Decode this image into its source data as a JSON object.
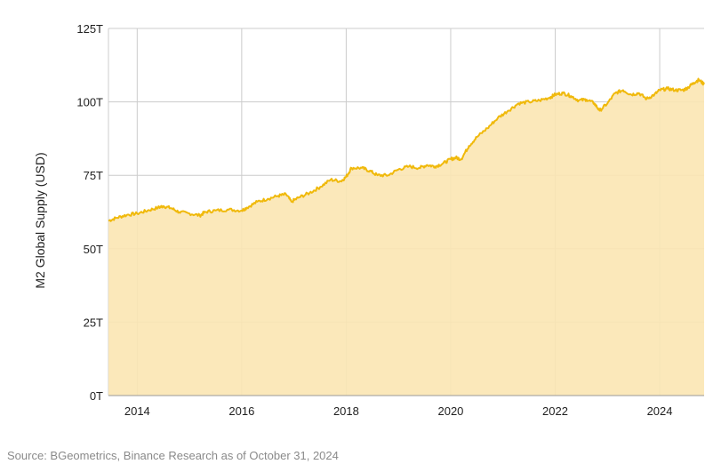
{
  "chart_data": {
    "type": "area",
    "title": "",
    "ylabel": "M2 Global Supply (USD)",
    "xlabel": "",
    "x_range": [
      2013.45,
      2024.85
    ],
    "ylim": [
      0,
      125
    ],
    "x_ticks": [
      {
        "value": 2014,
        "label": "2014"
      },
      {
        "value": 2016,
        "label": "2016"
      },
      {
        "value": 2018,
        "label": "2018"
      },
      {
        "value": 2020,
        "label": "2020"
      },
      {
        "value": 2022,
        "label": "2022"
      },
      {
        "value": 2024,
        "label": "2024"
      }
    ],
    "y_ticks": [
      {
        "value": 0,
        "label": "0T"
      },
      {
        "value": 25,
        "label": "25T"
      },
      {
        "value": 50,
        "label": "50T"
      },
      {
        "value": 75,
        "label": "75T"
      },
      {
        "value": 100,
        "label": "100T"
      },
      {
        "value": 125,
        "label": "125T"
      }
    ],
    "grid": true,
    "legend": "none",
    "colors": {
      "line": "#F0B90B",
      "fill": "#FBE6B3",
      "grid": "#CCCCCC"
    },
    "series": [
      {
        "name": "",
        "x": [
          2013.45,
          2013.6,
          2013.8,
          2014.0,
          2014.2,
          2014.4,
          2014.5,
          2014.65,
          2014.8,
          2015.0,
          2015.2,
          2015.3,
          2015.5,
          2015.75,
          2016.0,
          2016.1,
          2016.3,
          2016.5,
          2016.7,
          2016.85,
          2016.95,
          2017.1,
          2017.3,
          2017.5,
          2017.7,
          2017.9,
          2018.0,
          2018.1,
          2018.3,
          2018.45,
          2018.6,
          2018.8,
          2019.0,
          2019.2,
          2019.4,
          2019.55,
          2019.7,
          2019.85,
          2020.0,
          2020.1,
          2020.2,
          2020.35,
          2020.5,
          2020.7,
          2020.9,
          2021.1,
          2021.3,
          2021.5,
          2021.7,
          2021.9,
          2022.0,
          2022.15,
          2022.3,
          2022.45,
          2022.6,
          2022.75,
          2022.85,
          2023.0,
          2023.15,
          2023.3,
          2023.45,
          2023.6,
          2023.75,
          2023.9,
          2024.0,
          2024.15,
          2024.3,
          2024.45,
          2024.55,
          2024.65,
          2024.75,
          2024.85
        ],
        "values": [
          59.5,
          60.5,
          61.5,
          62.0,
          63.0,
          64.0,
          64.5,
          63.8,
          62.5,
          62.0,
          61.3,
          62.5,
          63.0,
          63.3,
          63.0,
          64.0,
          66.0,
          67.0,
          68.0,
          68.5,
          66.0,
          67.5,
          69.0,
          71.0,
          73.5,
          73.0,
          74.5,
          77.5,
          77.5,
          76.5,
          75.0,
          75.0,
          77.0,
          78.0,
          77.5,
          78.5,
          78.0,
          79.0,
          80.5,
          81.0,
          80.5,
          85.0,
          88.0,
          91.0,
          94.5,
          97.0,
          99.5,
          100.0,
          100.5,
          101.5,
          102.5,
          103.0,
          102.0,
          100.5,
          100.8,
          99.5,
          97.0,
          99.5,
          103.0,
          104.0,
          102.5,
          103.0,
          101.0,
          102.5,
          104.0,
          104.5,
          104.0,
          104.0,
          105.0,
          106.5,
          107.5,
          106.0
        ]
      }
    ],
    "source": "Source: BGeometrics, Binance Research as of October 31, 2024"
  }
}
